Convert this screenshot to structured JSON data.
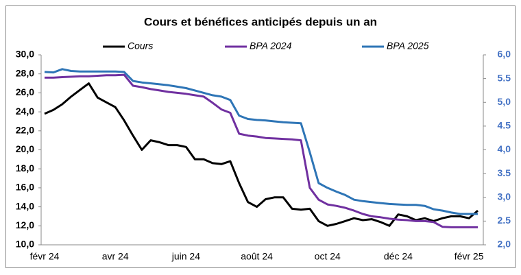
{
  "chart_data": {
    "type": "line",
    "title": "Cours et bénéfices anticipés depuis un an",
    "categories": [
      "févr 24",
      null,
      null,
      null,
      null,
      null,
      null,
      null,
      "avr 24",
      null,
      null,
      null,
      null,
      null,
      null,
      null,
      "juin 24",
      null,
      null,
      null,
      null,
      null,
      null,
      null,
      "août 24",
      null,
      null,
      null,
      null,
      null,
      null,
      null,
      "oct 24",
      null,
      null,
      null,
      null,
      null,
      null,
      null,
      "déc 24",
      null,
      null,
      null,
      null,
      null,
      null,
      null,
      "févr 25",
      null
    ],
    "series": [
      {
        "name": "Cours",
        "color": "#000000",
        "values": [
          23.8,
          24.2,
          24.8,
          25.6,
          26.3,
          27.0,
          25.5,
          25.0,
          24.5,
          23.1,
          21.5,
          20.0,
          21.0,
          20.8,
          20.5,
          20.5,
          20.3,
          19.0,
          19.0,
          18.6,
          18.5,
          18.8,
          16.5,
          14.5,
          14.0,
          14.8,
          15.0,
          15.0,
          13.8,
          13.7,
          13.8,
          12.5,
          12.0,
          12.2,
          12.5,
          12.8,
          12.6,
          12.7,
          12.4,
          12.0,
          13.2,
          13.0,
          12.6,
          12.8,
          12.5,
          12.8,
          13.0,
          13.0,
          12.8,
          13.6
        ]
      },
      {
        "name": "BPA 2024",
        "color": "#7030a0",
        "axis": "y2",
        "values": [
          5.52,
          5.52,
          5.53,
          5.54,
          5.55,
          5.55,
          5.56,
          5.57,
          5.57,
          5.58,
          5.35,
          5.32,
          5.28,
          5.25,
          5.22,
          5.2,
          5.18,
          5.15,
          5.12,
          4.99,
          4.85,
          4.78,
          4.34,
          4.3,
          4.28,
          4.25,
          4.24,
          4.23,
          4.22,
          4.2,
          3.2,
          2.95,
          2.85,
          2.82,
          2.78,
          2.72,
          2.65,
          2.6,
          2.58,
          2.55,
          2.53,
          2.52,
          2.5,
          2.5,
          2.48,
          2.38,
          2.37,
          2.37,
          2.37,
          2.37
        ]
      },
      {
        "name": "BPA 2025",
        "color": "#2e75b6",
        "axis": "y2",
        "values": [
          5.64,
          5.63,
          5.7,
          5.66,
          5.65,
          5.65,
          5.65,
          5.65,
          5.65,
          5.64,
          5.45,
          5.42,
          5.4,
          5.38,
          5.36,
          5.33,
          5.3,
          5.25,
          5.2,
          5.15,
          5.12,
          5.05,
          4.72,
          4.65,
          4.63,
          4.62,
          4.6,
          4.58,
          4.57,
          4.56,
          3.95,
          3.3,
          3.2,
          3.12,
          3.05,
          2.95,
          2.92,
          2.9,
          2.88,
          2.86,
          2.85,
          2.84,
          2.84,
          2.82,
          2.75,
          2.72,
          2.68,
          2.65,
          2.65,
          2.65
        ]
      }
    ],
    "ylim": [
      10,
      30
    ],
    "yticks": [
      {
        "value": 10,
        "label": "10,0"
      },
      {
        "value": 12,
        "label": "12,0"
      },
      {
        "value": 14,
        "label": "14,0"
      },
      {
        "value": 16,
        "label": "16,0"
      },
      {
        "value": 18,
        "label": "18,0"
      },
      {
        "value": 20,
        "label": "20,0"
      },
      {
        "value": 22,
        "label": "22,0"
      },
      {
        "value": 24,
        "label": "24,0"
      },
      {
        "value": 26,
        "label": "26,0"
      },
      {
        "value": 28,
        "label": "28,0"
      },
      {
        "value": 30,
        "label": "30,0"
      }
    ],
    "y2lim": [
      2,
      6
    ],
    "y2ticks": [
      {
        "value": 2,
        "label": "2,0"
      },
      2.5,
      {
        "value": 3,
        "label": "3,0"
      },
      3.5,
      {
        "value": 4,
        "label": "4,0"
      },
      4.5,
      {
        "value": 5,
        "label": "5,0"
      },
      5.5,
      {
        "value": 6,
        "label": "6,0"
      }
    ],
    "legend": "top"
  }
}
